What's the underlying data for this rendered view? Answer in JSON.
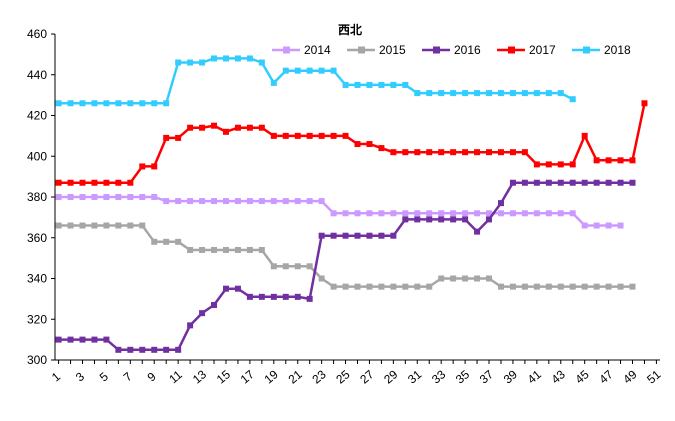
{
  "chart_data": {
    "type": "line",
    "title": "西北",
    "xlabel": "",
    "ylabel": "",
    "ylim": [
      300,
      460
    ],
    "yticks": [
      300,
      320,
      340,
      360,
      380,
      400,
      420,
      440,
      460
    ],
    "xlim": [
      1,
      51
    ],
    "xticks": [
      1,
      3,
      5,
      7,
      9,
      11,
      13,
      15,
      17,
      19,
      21,
      23,
      25,
      27,
      29,
      31,
      33,
      35,
      37,
      39,
      41,
      43,
      45,
      47,
      49,
      51
    ],
    "grid": false,
    "legend": "top",
    "series": [
      {
        "name": "2014",
        "color": "#cc99ff",
        "marker": "square",
        "x": [
          1,
          2,
          3,
          4,
          5,
          6,
          7,
          8,
          9,
          10,
          11,
          12,
          13,
          14,
          15,
          16,
          17,
          18,
          19,
          20,
          21,
          22,
          23,
          24,
          25,
          26,
          27,
          28,
          29,
          30,
          31,
          32,
          33,
          34,
          35,
          36,
          37,
          38,
          39,
          40,
          41,
          42,
          43,
          44,
          45,
          46,
          47,
          48
        ],
        "values": [
          380,
          380,
          380,
          380,
          380,
          380,
          380,
          380,
          380,
          378,
          378,
          378,
          378,
          378,
          378,
          378,
          378,
          378,
          378,
          378,
          378,
          378,
          378,
          372,
          372,
          372,
          372,
          372,
          372,
          372,
          372,
          372,
          372,
          372,
          372,
          372,
          372,
          372,
          372,
          372,
          372,
          372,
          372,
          372,
          366,
          366,
          366,
          366
        ]
      },
      {
        "name": "2015",
        "color": "#a6a6a6",
        "marker": "square",
        "x": [
          1,
          2,
          3,
          4,
          5,
          6,
          7,
          8,
          9,
          10,
          11,
          12,
          13,
          14,
          15,
          16,
          17,
          18,
          19,
          20,
          21,
          22,
          23,
          24,
          25,
          26,
          27,
          28,
          29,
          30,
          31,
          32,
          33,
          34,
          35,
          36,
          37,
          38,
          39,
          40,
          41,
          42,
          43,
          44,
          45,
          46,
          47,
          48,
          49
        ],
        "values": [
          366,
          366,
          366,
          366,
          366,
          366,
          366,
          366,
          358,
          358,
          358,
          354,
          354,
          354,
          354,
          354,
          354,
          354,
          346,
          346,
          346,
          346,
          340,
          336,
          336,
          336,
          336,
          336,
          336,
          336,
          336,
          336,
          340,
          340,
          340,
          340,
          340,
          336,
          336,
          336,
          336,
          336,
          336,
          336,
          336,
          336,
          336,
          336,
          336
        ]
      },
      {
        "name": "2016",
        "color": "#7030a0",
        "marker": "square",
        "x": [
          1,
          2,
          3,
          4,
          5,
          6,
          7,
          8,
          9,
          10,
          11,
          12,
          13,
          14,
          15,
          16,
          17,
          18,
          19,
          20,
          21,
          22,
          23,
          24,
          25,
          26,
          27,
          28,
          29,
          30,
          31,
          32,
          33,
          34,
          35,
          36,
          37,
          38,
          39,
          40,
          41,
          42,
          43,
          44,
          45,
          46,
          47,
          48,
          49
        ],
        "values": [
          310,
          310,
          310,
          310,
          310,
          305,
          305,
          305,
          305,
          305,
          305,
          317,
          323,
          327,
          335,
          335,
          331,
          331,
          331,
          331,
          331,
          330,
          361,
          361,
          361,
          361,
          361,
          361,
          361,
          369,
          369,
          369,
          369,
          369,
          369,
          363,
          369,
          377,
          387,
          387,
          387,
          387,
          387,
          387,
          387,
          387,
          387,
          387,
          387
        ]
      },
      {
        "name": "2017",
        "color": "#ff0000",
        "marker": "square",
        "x": [
          1,
          2,
          3,
          4,
          5,
          6,
          7,
          8,
          9,
          10,
          11,
          12,
          13,
          14,
          15,
          16,
          17,
          18,
          19,
          20,
          21,
          22,
          23,
          24,
          25,
          26,
          27,
          28,
          29,
          30,
          31,
          32,
          33,
          34,
          35,
          36,
          37,
          38,
          39,
          40,
          41,
          42,
          43,
          44,
          45,
          46,
          47,
          48,
          49,
          50
        ],
        "values": [
          387,
          387,
          387,
          387,
          387,
          387,
          387,
          395,
          395,
          409,
          409,
          414,
          414,
          415,
          412,
          414,
          414,
          414,
          410,
          410,
          410,
          410,
          410,
          410,
          410,
          406,
          406,
          404,
          402,
          402,
          402,
          402,
          402,
          402,
          402,
          402,
          402,
          402,
          402,
          402,
          396,
          396,
          396,
          396,
          410,
          398,
          398,
          398,
          398,
          426
        ]
      },
      {
        "name": "2018",
        "color": "#33ccff",
        "marker": "square",
        "x": [
          1,
          2,
          3,
          4,
          5,
          6,
          7,
          8,
          9,
          10,
          11,
          12,
          13,
          14,
          15,
          16,
          17,
          18,
          19,
          20,
          21,
          22,
          23,
          24,
          25,
          26,
          27,
          28,
          29,
          30,
          31,
          32,
          33,
          34,
          35,
          36,
          37,
          38,
          39,
          40,
          41,
          42,
          43,
          44
        ],
        "values": [
          426,
          426,
          426,
          426,
          426,
          426,
          426,
          426,
          426,
          426,
          446,
          446,
          446,
          448,
          448,
          448,
          448,
          446,
          436,
          442,
          442,
          442,
          442,
          442,
          435,
          435,
          435,
          435,
          435,
          435,
          431,
          431,
          431,
          431,
          431,
          431,
          431,
          431,
          431,
          431,
          431,
          431,
          431,
          428
        ]
      }
    ]
  }
}
